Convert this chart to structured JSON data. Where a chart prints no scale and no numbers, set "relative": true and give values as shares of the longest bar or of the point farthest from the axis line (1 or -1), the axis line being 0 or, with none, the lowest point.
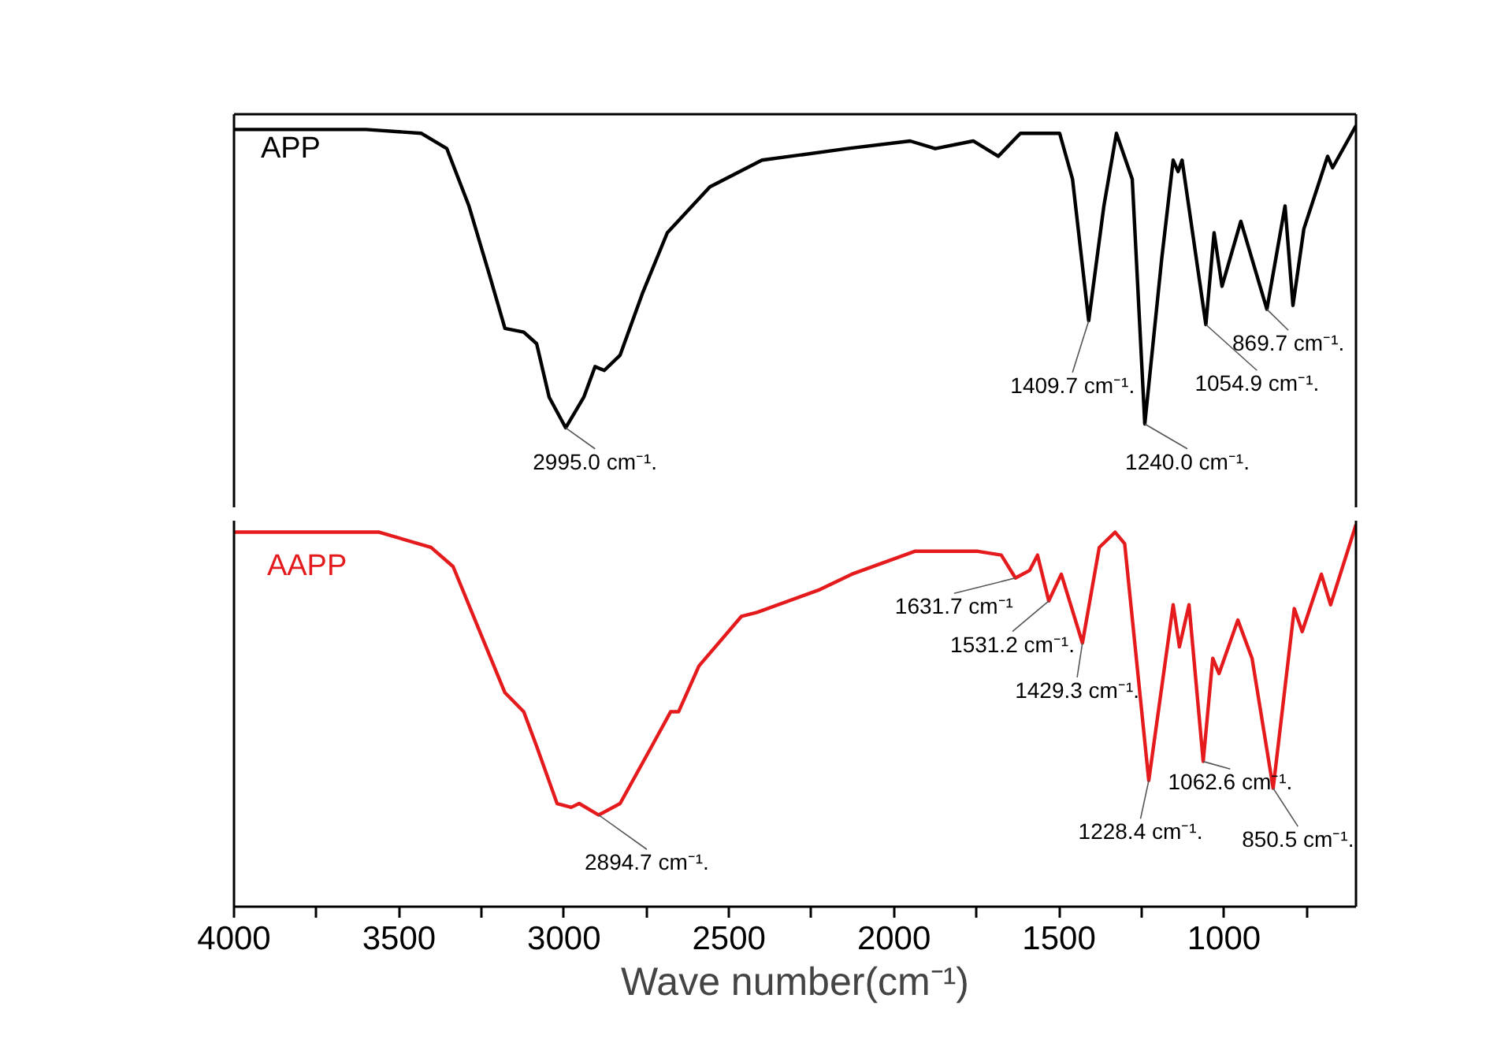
{
  "chart_data": [
    {
      "type": "line",
      "relative": true,
      "xlim": [
        4000,
        600
      ],
      "tick_labels": false,
      "legend": false,
      "series": [
        {
          "name": "APP",
          "color": "#000000",
          "x": [
            4000,
            3600,
            3432,
            3355,
            3288,
            3226,
            3179,
            3122,
            3083,
            3045,
            2995,
            2940,
            2906,
            2878,
            2830,
            2763,
            2687,
            2558,
            2400,
            2142,
            1951,
            1875,
            1760,
            1684,
            1617,
            1498,
            1459,
            1410,
            1364,
            1326,
            1278,
            1240,
            1189,
            1154,
            1139,
            1127,
            1055,
            1030,
            1006,
            949,
            870,
            815,
            791,
            758,
            686,
            671,
            600
          ],
          "values": [
            0.99,
            0.99,
            0.98,
            0.94,
            0.79,
            0.61,
            0.47,
            0.46,
            0.43,
            0.29,
            0.21,
            0.29,
            0.37,
            0.36,
            0.4,
            0.56,
            0.72,
            0.84,
            0.91,
            0.94,
            0.96,
            0.94,
            0.96,
            0.92,
            0.98,
            0.98,
            0.86,
            0.49,
            0.79,
            0.98,
            0.86,
            0.22,
            0.65,
            0.91,
            0.88,
            0.91,
            0.48,
            0.72,
            0.58,
            0.75,
            0.52,
            0.79,
            0.53,
            0.73,
            0.92,
            0.89,
            1.0
          ]
        }
      ],
      "annotations": [
        {
          "text": "2995.0 cm⁻¹.",
          "x": 2995,
          "y": 0.21
        },
        {
          "text": "1409.7 cm⁻¹.",
          "x": 1410,
          "y": 0.49
        },
        {
          "text": "1240.0 cm⁻¹.",
          "x": 1240,
          "y": 0.22
        },
        {
          "text": "1054.9 cm⁻¹.",
          "x": 1055,
          "y": 0.48
        },
        {
          "text": "869.7 cm⁻¹.",
          "x": 870,
          "y": 0.52
        }
      ]
    },
    {
      "type": "line",
      "relative": true,
      "xlim": [
        4000,
        600
      ],
      "tick_labels": "x",
      "legend": false,
      "xlabel": "Wave number(cm⁻¹)",
      "xticks": [
        4000,
        {
          "value": 3750,
          "label": null
        },
        3500,
        {
          "value": 3250,
          "label": null
        },
        3000,
        {
          "value": 2750,
          "label": null
        },
        2500,
        {
          "value": 2250,
          "label": null
        },
        2000,
        {
          "value": 1750,
          "label": null
        },
        1500,
        {
          "value": 1250,
          "label": null
        },
        1000,
        {
          "value": 750,
          "label": null
        }
      ],
      "series": [
        {
          "name": "AAPP",
          "color": "#e41a1c",
          "x": [
            4000,
            3560,
            3403,
            3336,
            3260,
            3179,
            3122,
            3083,
            3021,
            2978,
            2954,
            2895,
            2830,
            2734,
            2677,
            2653,
            2591,
            2462,
            2415,
            2224,
            2128,
            1937,
            1746,
            1675,
            1632,
            1589,
            1565,
            1531,
            1493,
            1429,
            1378,
            1330,
            1301,
            1228,
            1154,
            1135,
            1106,
            1063,
            1034,
            1015,
            958,
            915,
            851,
            787,
            763,
            705,
            677,
            600
          ],
          "values": [
            0.98,
            0.98,
            0.94,
            0.89,
            0.73,
            0.56,
            0.51,
            0.42,
            0.27,
            0.26,
            0.27,
            0.24,
            0.27,
            0.42,
            0.51,
            0.51,
            0.63,
            0.76,
            0.77,
            0.83,
            0.87,
            0.93,
            0.93,
            0.92,
            0.86,
            0.88,
            0.92,
            0.8,
            0.87,
            0.69,
            0.94,
            0.98,
            0.95,
            0.33,
            0.79,
            0.68,
            0.79,
            0.38,
            0.65,
            0.61,
            0.75,
            0.65,
            0.31,
            0.78,
            0.72,
            0.87,
            0.79,
            1.0
          ]
        }
      ],
      "annotations": [
        {
          "text": "2894.7 cm⁻¹.",
          "x": 2895,
          "y": 0.24
        },
        {
          "text": "1631.7 cm⁻¹",
          "x": 1632,
          "y": 0.86
        },
        {
          "text": "1531.2 cm⁻¹.",
          "x": 1531,
          "y": 0.8
        },
        {
          "text": "1429.3 cm⁻¹.",
          "x": 1429,
          "y": 0.69
        },
        {
          "text": "1228.4 cm⁻¹.",
          "x": 1228,
          "y": 0.33
        },
        {
          "text": "1062.6 cm⁻¹.",
          "x": 1063,
          "y": 0.38
        },
        {
          "text": "850.5 cm⁻¹.",
          "x": 851,
          "y": 0.31
        }
      ]
    }
  ]
}
